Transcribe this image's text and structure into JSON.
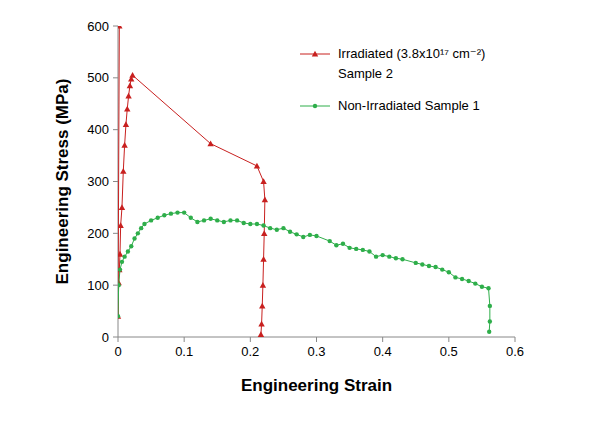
{
  "chart_data": {
    "type": "line",
    "x_label": "Engineering Strain",
    "y_label": "Engineering Stress (MPa)",
    "xlim": [
      0,
      0.6
    ],
    "xticks": [
      0,
      0.1,
      0.2,
      0.3,
      0.4,
      0.5,
      0.6
    ],
    "ylim": [
      0,
      600
    ],
    "yticks": [
      0,
      100,
      200,
      300,
      400,
      500,
      600
    ],
    "grid": false,
    "legend": "upper right",
    "series": [
      {
        "name": "Irradiated (3.8x10¹⁷ cm⁻²) Sample 2",
        "color": "#c8201f",
        "marker": "triangle",
        "line_style": "solid",
        "x": [
          0.002,
          0.0,
          0.001,
          0.002,
          0.003,
          0.004,
          0.006,
          0.008,
          0.01,
          0.012,
          0.014,
          0.016,
          0.018,
          0.02,
          0.022,
          0.14,
          0.21,
          0.22,
          0.222,
          0.221,
          0.22,
          0.219,
          0.218,
          0.217,
          0.216,
          0.216
        ],
        "values": [
          600,
          40,
          105,
          130,
          160,
          215,
          250,
          320,
          370,
          410,
          440,
          465,
          485,
          498,
          505,
          373,
          330,
          300,
          265,
          200,
          150,
          100,
          60,
          25,
          5,
          0
        ]
      },
      {
        "name": "Non-Irradiated Sample 1",
        "color": "#2eae4a",
        "marker": "circle",
        "line_style": "solid",
        "x": [
          0,
          0.001,
          0.003,
          0.006,
          0.01,
          0.015,
          0.02,
          0.025,
          0.03,
          0.035,
          0.04,
          0.05,
          0.06,
          0.07,
          0.08,
          0.09,
          0.1,
          0.11,
          0.12,
          0.13,
          0.14,
          0.15,
          0.16,
          0.17,
          0.18,
          0.19,
          0.2,
          0.21,
          0.22,
          0.23,
          0.24,
          0.25,
          0.26,
          0.27,
          0.28,
          0.29,
          0.3,
          0.32,
          0.33,
          0.34,
          0.35,
          0.36,
          0.37,
          0.38,
          0.39,
          0.4,
          0.41,
          0.42,
          0.43,
          0.45,
          0.46,
          0.47,
          0.48,
          0.49,
          0.5,
          0.51,
          0.52,
          0.53,
          0.54,
          0.55,
          0.56,
          0.562,
          0.562,
          0.561
        ],
        "values": [
          40,
          100,
          130,
          145,
          155,
          165,
          175,
          190,
          200,
          210,
          218,
          225,
          230,
          235,
          238,
          240,
          240,
          230,
          222,
          225,
          228,
          225,
          222,
          225,
          225,
          220,
          218,
          218,
          215,
          210,
          207,
          210,
          203,
          198,
          193,
          197,
          195,
          185,
          177,
          180,
          172,
          170,
          168,
          165,
          155,
          158,
          155,
          152,
          150,
          143,
          140,
          137,
          135,
          130,
          125,
          115,
          112,
          108,
          103,
          97,
          94,
          60,
          30,
          10
        ]
      }
    ]
  }
}
